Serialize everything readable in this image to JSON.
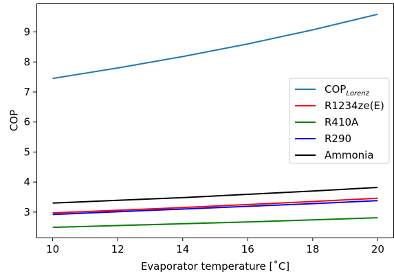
{
  "chart_data": {
    "type": "line",
    "title": "",
    "xlabel": "Evaporator temperature [˚C]",
    "ylabel": "COP",
    "xlim": [
      9.5,
      20.5
    ],
    "ylim": [
      2.15,
      9.95
    ],
    "xticks": [
      10,
      12,
      14,
      16,
      18,
      20
    ],
    "yticks": [
      3,
      4,
      5,
      6,
      7,
      8,
      9
    ],
    "grid": false,
    "legend_position": "center-right",
    "series": [
      {
        "name": "COP",
        "name_subscript": "Lorenz",
        "color": "#1f77b4",
        "x": [
          10,
          12,
          14,
          16,
          18,
          20
        ],
        "y": [
          7.45,
          7.8,
          8.18,
          8.6,
          9.07,
          9.59
        ]
      },
      {
        "name": "R1234ze(E)",
        "color": "#ff0000",
        "x": [
          10,
          12,
          14,
          16,
          18,
          20
        ],
        "y": [
          2.97,
          3.06,
          3.15,
          3.25,
          3.35,
          3.46
        ]
      },
      {
        "name": "R410A",
        "color": "#008000",
        "x": [
          10,
          12,
          14,
          16,
          18,
          20
        ],
        "y": [
          2.49,
          2.55,
          2.61,
          2.67,
          2.74,
          2.81
        ]
      },
      {
        "name": "R290",
        "color": "#0000ff",
        "x": [
          10,
          12,
          14,
          16,
          18,
          20
        ],
        "y": [
          2.92,
          3.01,
          3.1,
          3.19,
          3.28,
          3.38
        ]
      },
      {
        "name": "Ammonia",
        "color": "#000000",
        "x": [
          10,
          12,
          14,
          16,
          18,
          20
        ],
        "y": [
          3.3,
          3.39,
          3.48,
          3.59,
          3.7,
          3.82
        ]
      }
    ]
  }
}
